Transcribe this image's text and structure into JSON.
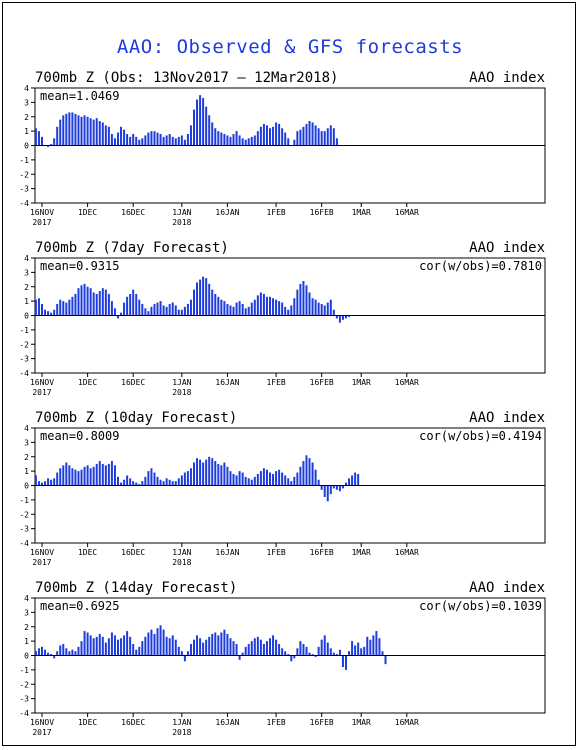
{
  "title": "AAO: Observed & GFS forecasts",
  "colors": {
    "bar": "#1e3cdc",
    "title": "#1e3cdc",
    "axis": "#000000"
  },
  "x_ticks": [
    "16NOV",
    "1DEC",
    "16DEC",
    "1JAN",
    "16JAN",
    "1FEB",
    "16FEB",
    "1MAR",
    "16MAR"
  ],
  "x_years": [
    "2017",
    "2018"
  ],
  "y_ticks": [
    "4",
    "3",
    "2",
    "1",
    "0",
    "-1",
    "-2",
    "-3",
    "-4"
  ],
  "chart_data": [
    {
      "type": "bar",
      "title": "700mb  Z  (Obs: 13Nov2017 – 12Mar2018)",
      "right_label": "AAO index",
      "mean_label": "mean=1.0469",
      "cor_label": "",
      "ylim": [
        -4,
        4
      ],
      "x_start": "2017-11-13",
      "values": [
        1.4,
        1.2,
        1.0,
        0.6,
        0.0,
        -0.1,
        0.1,
        0.5,
        1.3,
        1.8,
        2.1,
        2.2,
        2.3,
        2.3,
        2.2,
        2.1,
        2.0,
        2.1,
        2.0,
        1.9,
        1.8,
        1.9,
        1.7,
        1.6,
        1.4,
        1.3,
        0.8,
        0.5,
        0.9,
        1.3,
        1.1,
        0.8,
        0.6,
        0.8,
        0.6,
        0.4,
        0.5,
        0.7,
        0.9,
        1.0,
        1.0,
        0.9,
        0.8,
        0.6,
        0.7,
        0.8,
        0.6,
        0.5,
        0.6,
        0.7,
        0.4,
        0.8,
        1.4,
        2.5,
        3.2,
        3.5,
        3.3,
        2.7,
        2.1,
        1.6,
        1.2,
        1.0,
        0.9,
        0.8,
        0.7,
        0.6,
        0.8,
        1.0,
        0.7,
        0.5,
        0.4,
        0.5,
        0.6,
        0.7,
        1.0,
        1.3,
        1.5,
        1.4,
        1.2,
        1.3,
        1.6,
        1.5,
        1.2,
        0.9,
        0.5,
        0.0,
        0.4,
        1.0,
        1.1,
        1.3,
        1.5,
        1.7,
        1.6,
        1.4,
        1.2,
        1.0,
        1.0,
        1.2,
        1.4,
        1.2,
        0.5,
        0.0,
        0.0,
        0.0,
        0.0,
        0.0,
        0.0,
        0.0,
        0.0,
        0.0,
        0.0,
        0.0,
        0.0,
        0.0,
        0.0,
        0.0,
        0.0,
        0.0,
        0.0
      ]
    },
    {
      "type": "bar",
      "title": "700mb  Z  (7day Forecast)",
      "right_label": "AAO index",
      "mean_label": "mean=0.9315",
      "cor_label": "cor(w/obs)=0.7810",
      "ylim": [
        -4,
        4
      ],
      "x_start": "2017-11-13",
      "values": [
        1.2,
        1.1,
        1.2,
        0.8,
        0.4,
        0.3,
        0.2,
        0.4,
        0.8,
        1.1,
        1.0,
        0.9,
        1.1,
        1.3,
        1.5,
        1.9,
        2.1,
        2.2,
        2.0,
        1.9,
        1.6,
        1.5,
        1.7,
        1.9,
        1.8,
        1.5,
        1.0,
        0.5,
        -0.2,
        0.2,
        0.9,
        1.3,
        1.5,
        1.8,
        1.5,
        1.1,
        0.8,
        0.5,
        0.3,
        0.6,
        0.8,
        0.9,
        1.0,
        0.7,
        0.6,
        0.8,
        0.9,
        0.7,
        0.4,
        0.4,
        0.6,
        0.8,
        1.1,
        1.8,
        2.3,
        2.5,
        2.7,
        2.6,
        2.2,
        1.8,
        1.5,
        1.3,
        1.1,
        1.0,
        0.8,
        0.7,
        0.6,
        0.9,
        1.0,
        0.8,
        0.5,
        0.6,
        0.9,
        1.1,
        1.4,
        1.6,
        1.5,
        1.3,
        1.3,
        1.2,
        1.1,
        1.0,
        0.9,
        0.6,
        0.4,
        0.7,
        1.2,
        1.8,
        2.2,
        2.4,
        2.1,
        1.6,
        1.2,
        1.1,
        0.9,
        0.8,
        0.7,
        0.9,
        1.1,
        0.4,
        -0.2,
        -0.5,
        -0.3,
        -0.2,
        -0.1,
        0.0,
        0.0,
        0.0,
        0.0,
        0.0,
        0.0,
        0.0,
        0.0,
        0.0,
        0.0,
        0.0,
        0.0,
        0.0,
        0.0
      ]
    },
    {
      "type": "bar",
      "title": "700mb  Z  (10day Forecast)",
      "right_label": "AAO index",
      "mean_label": "mean=0.8009",
      "cor_label": "cor(w/obs)=0.4194",
      "ylim": [
        -4,
        4
      ],
      "x_start": "2017-11-13",
      "values": [
        1.1,
        0.7,
        0.3,
        0.2,
        0.3,
        0.5,
        0.4,
        0.5,
        0.9,
        1.2,
        1.4,
        1.6,
        1.4,
        1.2,
        1.1,
        1.0,
        1.1,
        1.3,
        1.4,
        1.2,
        1.3,
        1.5,
        1.7,
        1.5,
        1.4,
        1.5,
        1.7,
        1.4,
        0.6,
        0.2,
        0.4,
        0.7,
        0.5,
        0.3,
        0.2,
        0.1,
        0.3,
        0.6,
        1.0,
        1.2,
        0.9,
        0.6,
        0.4,
        0.3,
        0.5,
        0.4,
        0.3,
        0.3,
        0.5,
        0.7,
        0.9,
        1.0,
        1.2,
        1.6,
        1.9,
        1.8,
        1.6,
        1.8,
        2.0,
        1.9,
        1.7,
        1.5,
        1.4,
        1.6,
        1.3,
        1.0,
        0.8,
        0.7,
        1.0,
        0.9,
        0.6,
        0.5,
        0.4,
        0.6,
        0.8,
        1.0,
        1.2,
        1.1,
        0.9,
        0.8,
        1.0,
        1.1,
        0.9,
        0.7,
        0.5,
        0.3,
        0.6,
        0.9,
        1.3,
        1.7,
        2.1,
        1.9,
        1.6,
        1.1,
        0.4,
        -0.3,
        -0.8,
        -1.1,
        -0.6,
        -0.2,
        -0.3,
        -0.4,
        -0.2,
        0.2,
        0.5,
        0.7,
        0.9,
        0.8,
        0.0,
        0.0,
        0.0,
        0.0,
        0.0,
        0.0,
        0.0,
        0.0,
        0.0,
        0.0,
        0.0
      ]
    },
    {
      "type": "bar",
      "title": "700mb  Z  (14day Forecast)",
      "right_label": "AAO index",
      "mean_label": "mean=0.6925",
      "cor_label": "cor(w/obs)=0.1039",
      "ylim": [
        -4,
        4
      ],
      "x_start": "2017-11-13",
      "values": [
        0.1,
        0.3,
        0.5,
        0.6,
        0.4,
        0.2,
        0.1,
        -0.2,
        0.3,
        0.7,
        0.8,
        0.5,
        0.3,
        0.4,
        0.3,
        0.6,
        1.0,
        1.7,
        1.6,
        1.4,
        1.2,
        1.3,
        1.5,
        1.3,
        0.9,
        1.2,
        1.6,
        1.4,
        1.1,
        1.2,
        1.4,
        1.7,
        1.3,
        0.8,
        0.4,
        0.6,
        1.0,
        1.3,
        1.6,
        1.8,
        1.5,
        1.9,
        2.1,
        1.8,
        1.3,
        1.2,
        1.4,
        1.1,
        0.6,
        0.3,
        -0.4,
        0.3,
        0.8,
        1.1,
        1.4,
        1.2,
        0.9,
        1.1,
        1.3,
        1.5,
        1.6,
        1.4,
        1.6,
        1.8,
        1.5,
        1.2,
        1.0,
        0.8,
        -0.3,
        0.2,
        0.6,
        0.8,
        1.0,
        1.2,
        1.3,
        1.1,
        0.8,
        1.0,
        1.2,
        1.4,
        1.1,
        0.8,
        0.5,
        0.3,
        0.1,
        -0.4,
        -0.2,
        0.5,
        1.0,
        0.8,
        0.6,
        0.2,
        0.1,
        -0.1,
        0.6,
        1.1,
        1.4,
        0.9,
        0.5,
        0.2,
        0.1,
        0.4,
        -0.8,
        -1.0,
        0.3,
        1.0,
        0.7,
        0.9,
        0.5,
        0.6,
        1.3,
        1.1,
        1.4,
        1.7,
        1.2,
        0.3,
        -0.6,
        0.0,
        0.0
      ]
    }
  ]
}
